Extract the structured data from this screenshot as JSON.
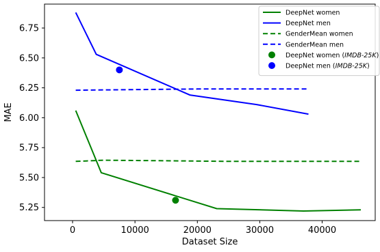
{
  "chart_data": {
    "type": "line",
    "xlabel": "Dataset Size",
    "ylabel": "MAE",
    "xlim": [
      -4500,
      48500
    ],
    "ylim": [
      5.14,
      6.95
    ],
    "x_ticks": [
      0,
      10000,
      20000,
      30000,
      40000
    ],
    "x_tick_labels": [
      "0",
      "10000",
      "20000",
      "30000",
      "40000"
    ],
    "y_ticks": [
      5.25,
      5.5,
      5.75,
      6.0,
      6.25,
      6.5,
      6.75
    ],
    "y_tick_labels": [
      "5.25",
      "5.50",
      "5.75",
      "6.00",
      "6.25",
      "6.50",
      "6.75"
    ],
    "grid": false,
    "legend_position": "top-right",
    "series": [
      {
        "name": "DeepNet women",
        "color": "#008000",
        "style": "solid",
        "marker": "none",
        "x": [
          500,
          4600,
          23100,
          37000,
          46200
        ],
        "y": [
          6.06,
          5.54,
          5.24,
          5.22,
          5.23
        ]
      },
      {
        "name": "DeepNet men",
        "color": "#0000ff",
        "style": "solid",
        "marker": "none",
        "x": [
          500,
          3800,
          18800,
          29500,
          37800
        ],
        "y": [
          6.88,
          6.53,
          6.19,
          6.11,
          6.03
        ]
      },
      {
        "name": "GenderMean women",
        "color": "#008000",
        "style": "dashed",
        "marker": "none",
        "x": [
          500,
          5000,
          15000,
          25000,
          35000,
          46200
        ],
        "y": [
          5.635,
          5.645,
          5.64,
          5.635,
          5.635,
          5.635
        ]
      },
      {
        "name": "GenderMean men",
        "color": "#0000ff",
        "style": "dashed",
        "marker": "none",
        "x": [
          500,
          10000,
          20000,
          30000,
          37800
        ],
        "y": [
          6.23,
          6.235,
          6.24,
          6.24,
          6.24
        ]
      },
      {
        "name": "DeepNet women (IMDB-25K)",
        "name_prefix": "DeepNet women (",
        "name_italic": "IMDB-25K",
        "name_suffix": ")",
        "color": "#008000",
        "style": "none",
        "marker": "circle",
        "x": [
          16500
        ],
        "y": [
          5.31
        ]
      },
      {
        "name": "DeepNet men (IMDB-25K)",
        "name_prefix": "DeepNet men (",
        "name_italic": "IMDB-25K",
        "name_suffix": ")",
        "color": "#0000ff",
        "style": "none",
        "marker": "circle",
        "x": [
          7500
        ],
        "y": [
          6.4
        ]
      }
    ]
  }
}
